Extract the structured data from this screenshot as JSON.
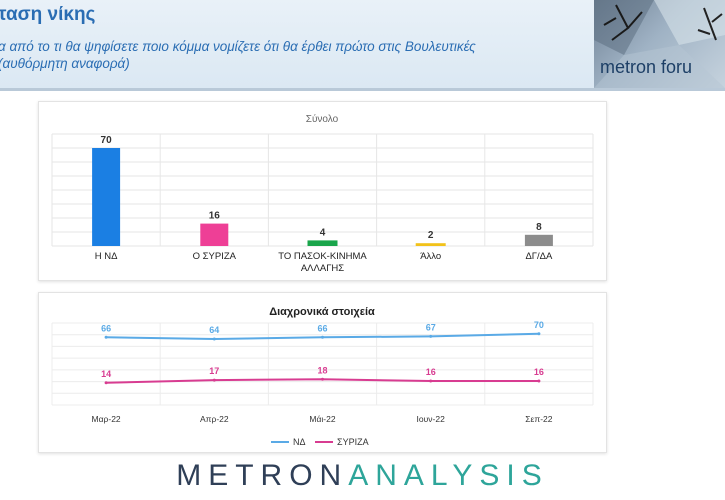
{
  "header": {
    "title": "ταση νίκης",
    "subtitle_line1": "α από το τι θα ψηφίσετε ποιο κόμμα νομίζετε ότι θα έρθει πρώτο στις Βουλευτικές",
    "subtitle_line2": "(αυθόρμητη αναφορά)",
    "forum_label": "metron foru"
  },
  "logo": {
    "part1": "METRON",
    "part2": "ANALYSIS"
  },
  "chart_data": [
    {
      "type": "bar",
      "title": "Σύνολο",
      "categories": [
        "Η ΝΔ",
        "Ο ΣΥΡΙΖΑ",
        "ΤΟ ΠΑΣΟΚ-ΚΙΝΗΜΑ ΑΛΛΑΓΗΣ",
        "Άλλο",
        "ΔΓ/ΔΑ"
      ],
      "values": [
        70,
        16,
        4,
        2,
        8
      ],
      "colors": [
        "#1b7fe3",
        "#ee3f96",
        "#1aa54b",
        "#f2c21a",
        "#8c8c8c"
      ],
      "ylim": [
        0,
        80
      ],
      "grid": true
    },
    {
      "type": "line",
      "title": "Διαχρονικά στοιχεία",
      "categories": [
        "Μαρ-22",
        "Απρ-22",
        "Μάι-22",
        "Ιουν-22",
        "Σεπ-22"
      ],
      "series": [
        {
          "name": "ΝΔ",
          "values": [
            66,
            64,
            66,
            67,
            70
          ],
          "color": "#5aaae6"
        },
        {
          "name": "ΣΥΡΙΖΑ",
          "values": [
            14,
            17,
            18,
            16,
            16
          ],
          "color": "#d83c91"
        }
      ],
      "legend": "bottom",
      "grid": true
    }
  ]
}
